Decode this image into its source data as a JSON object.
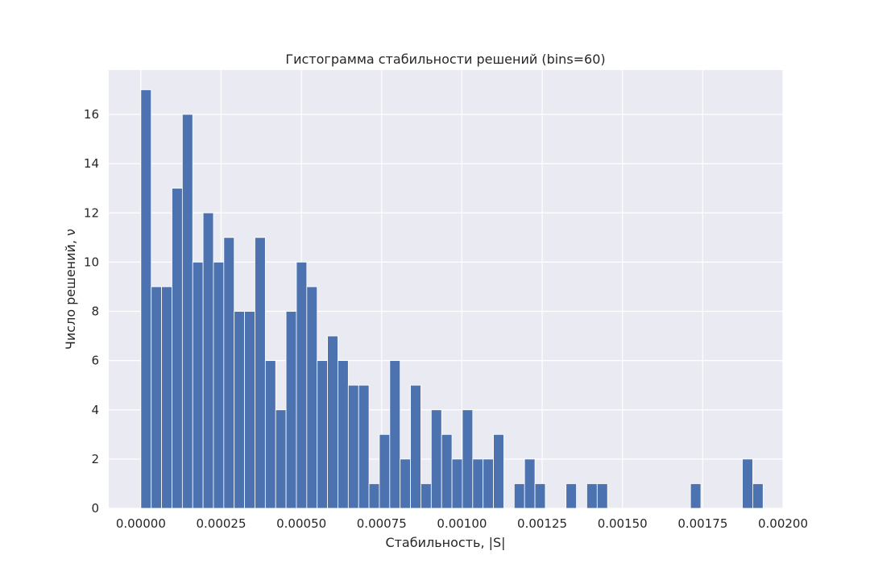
{
  "chart_data": {
    "type": "bar",
    "title": "Гистограмма стабильности решений (bins=60)",
    "xlabel": "Стабильность, |S|",
    "ylabel": "Число решений, ν",
    "xlim": [
      -0.0001,
      0.002
    ],
    "ylim": [
      0,
      17.8
    ],
    "x_ticks": [
      0.0,
      0.00025,
      0.0005,
      0.00075,
      0.001,
      0.00125,
      0.0015,
      0.00175,
      0.002
    ],
    "x_tick_labels": [
      "0.00000",
      "0.00025",
      "0.00050",
      "0.00075",
      "0.00100",
      "0.00125",
      "0.00150",
      "0.00175",
      "0.00200"
    ],
    "y_ticks": [
      0,
      2,
      4,
      6,
      8,
      10,
      12,
      14,
      16
    ],
    "y_tick_labels": [
      "0",
      "2",
      "4",
      "6",
      "8",
      "10",
      "12",
      "14",
      "16"
    ],
    "grid": true,
    "colors": {
      "bar": "#4c72b0",
      "background": "#eaeaf2",
      "grid": "#ffffff"
    },
    "bin_start": 0.0,
    "bin_width": 3.23e-05,
    "bins": 60,
    "values": [
      17,
      9,
      9,
      13,
      16,
      10,
      12,
      10,
      11,
      8,
      8,
      11,
      6,
      4,
      8,
      10,
      9,
      6,
      7,
      6,
      5,
      5,
      1,
      3,
      6,
      2,
      5,
      1,
      4,
      3,
      2,
      4,
      2,
      2,
      3,
      0,
      1,
      2,
      1,
      0,
      0,
      1,
      0,
      1,
      1,
      0,
      0,
      0,
      0,
      0,
      0,
      0,
      0,
      1,
      0,
      0,
      0,
      0,
      2,
      1
    ]
  }
}
